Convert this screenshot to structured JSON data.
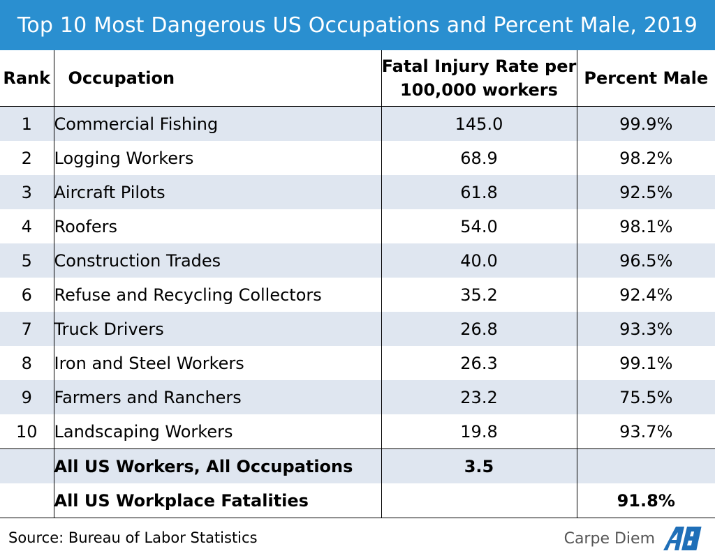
{
  "title": "Top 10 Most Dangerous US Occupations and Percent Male, 2019",
  "headers": {
    "rank": "Rank",
    "occupation": "Occupation",
    "rate": "Fatal Injury Rate per 100,000 workers",
    "male": "Percent Male"
  },
  "rows": [
    {
      "rank": "1",
      "occupation": "Commercial Fishing",
      "rate": "145.0",
      "male": "99.9%"
    },
    {
      "rank": "2",
      "occupation": "Logging Workers",
      "rate": "68.9",
      "male": "98.2%"
    },
    {
      "rank": "3",
      "occupation": "Aircraft Pilots",
      "rate": "61.8",
      "male": "92.5%"
    },
    {
      "rank": "4",
      "occupation": "Roofers",
      "rate": "54.0",
      "male": "98.1%"
    },
    {
      "rank": "5",
      "occupation": "Construction Trades",
      "rate": "40.0",
      "male": "96.5%"
    },
    {
      "rank": "6",
      "occupation": "Refuse and Recycling Collectors",
      "rate": "35.2",
      "male": "92.4%"
    },
    {
      "rank": "7",
      "occupation": "Truck Drivers",
      "rate": "26.8",
      "male": "93.3%"
    },
    {
      "rank": "8",
      "occupation": "Iron and Steel Workers",
      "rate": "26.3",
      "male": "99.1%"
    },
    {
      "rank": "9",
      "occupation": "Farmers and Ranchers",
      "rate": "23.2",
      "male": "75.5%"
    },
    {
      "rank": "10",
      "occupation": "Landscaping Workers",
      "rate": "19.8",
      "male": "93.7%"
    }
  ],
  "summary": [
    {
      "label": "All US Workers, All Occupations",
      "rate": "3.5",
      "male": ""
    },
    {
      "label": "All US Workplace Fatalities",
      "rate": "",
      "male": "91.8%"
    }
  ],
  "footer": {
    "source": "Source: Bureau of Labor Statistics",
    "brand": "Carpe Diem",
    "logo_text": "AEI"
  },
  "colors": {
    "title_bg": "#2a8fd0",
    "row_shade": "#dfe6f0",
    "logo_blue": "#1f6fb8"
  }
}
